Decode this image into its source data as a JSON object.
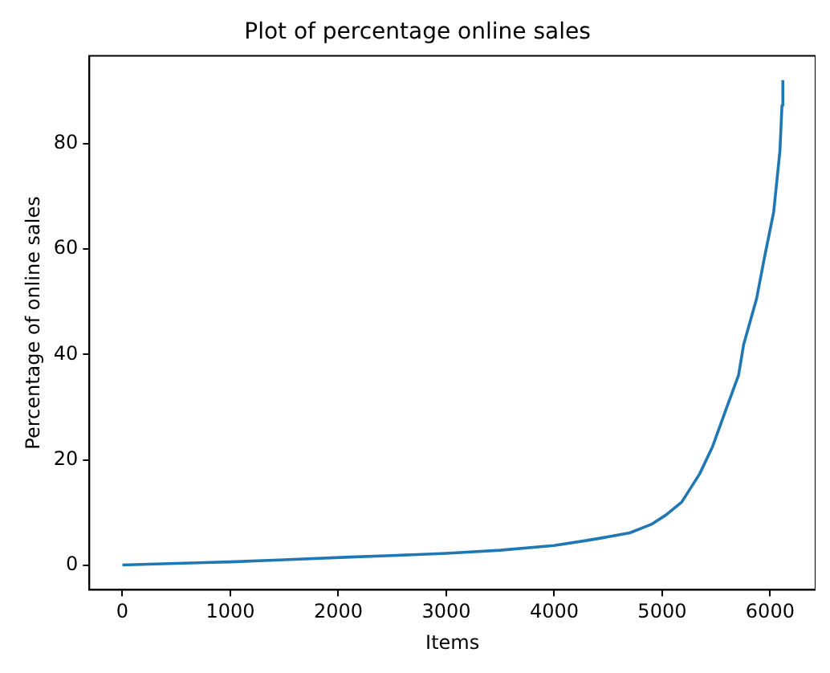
{
  "chart_data": {
    "type": "line",
    "title": "Plot of percentage online sales",
    "xlabel": "Items",
    "ylabel": "Percentage of online sales",
    "series": [
      {
        "color": "#1f77b4",
        "x": [
          0,
          500,
          1000,
          1500,
          2110,
          2500,
          3000,
          3500,
          4000,
          4317,
          4460,
          4700,
          4900,
          5036,
          5180,
          5348,
          5468,
          5588,
          5708,
          5755,
          5875,
          5947,
          6033,
          6091,
          6110,
          6118
        ],
        "values": [
          0.1,
          0.4,
          0.7,
          1.1,
          1.6,
          1.9,
          2.3,
          2.9,
          3.8,
          4.8,
          5.3,
          6.2,
          7.8,
          9.6,
          12.0,
          17.4,
          22.6,
          29.4,
          36.1,
          41.9,
          50.6,
          58.3,
          67.0,
          78.6,
          87.2,
          92.0
        ]
      }
    ],
    "xlim": [
      -306,
      6421
    ],
    "ylim": [
      -4.6,
      96.6
    ],
    "xticks": [
      0,
      1000,
      2000,
      3000,
      4000,
      5000,
      6000
    ],
    "yticks": [
      0,
      20,
      40,
      60,
      80
    ],
    "grid": false,
    "legend": false,
    "marker": "none",
    "line_style": "solid"
  }
}
